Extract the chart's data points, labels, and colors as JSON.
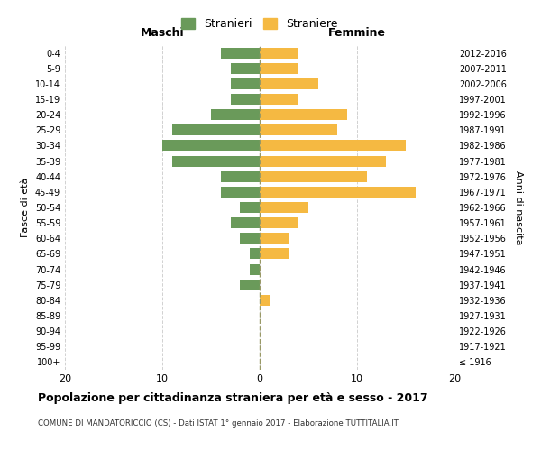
{
  "age_groups": [
    "100+",
    "95-99",
    "90-94",
    "85-89",
    "80-84",
    "75-79",
    "70-74",
    "65-69",
    "60-64",
    "55-59",
    "50-54",
    "45-49",
    "40-44",
    "35-39",
    "30-34",
    "25-29",
    "20-24",
    "15-19",
    "10-14",
    "5-9",
    "0-4"
  ],
  "birth_years": [
    "≤ 1916",
    "1917-1921",
    "1922-1926",
    "1927-1931",
    "1932-1936",
    "1937-1941",
    "1942-1946",
    "1947-1951",
    "1952-1956",
    "1957-1961",
    "1962-1966",
    "1967-1971",
    "1972-1976",
    "1977-1981",
    "1982-1986",
    "1987-1991",
    "1992-1996",
    "1997-2001",
    "2002-2006",
    "2007-2011",
    "2012-2016"
  ],
  "maschi": [
    0,
    0,
    0,
    0,
    0,
    2,
    1,
    1,
    2,
    3,
    2,
    4,
    4,
    9,
    10,
    9,
    5,
    3,
    3,
    3,
    4
  ],
  "femmine": [
    0,
    0,
    0,
    0,
    1,
    0,
    0,
    3,
    3,
    4,
    5,
    16,
    11,
    13,
    15,
    8,
    9,
    4,
    6,
    4,
    4
  ],
  "color_maschi": "#6a9a5a",
  "color_femmine": "#f5b942",
  "background_color": "#ffffff",
  "grid_color": "#cccccc",
  "title": "Popolazione per cittadinanza straniera per età e sesso - 2017",
  "subtitle": "COMUNE DI MANDATORICCIO (CS) - Dati ISTAT 1° gennaio 2017 - Elaborazione TUTTITALIA.IT",
  "xlabel_left": "Maschi",
  "xlabel_right": "Femmine",
  "ylabel_left": "Fasce di età",
  "ylabel_right": "Anni di nascita",
  "legend_maschi": "Stranieri",
  "legend_femmine": "Straniere",
  "xlim": 20
}
